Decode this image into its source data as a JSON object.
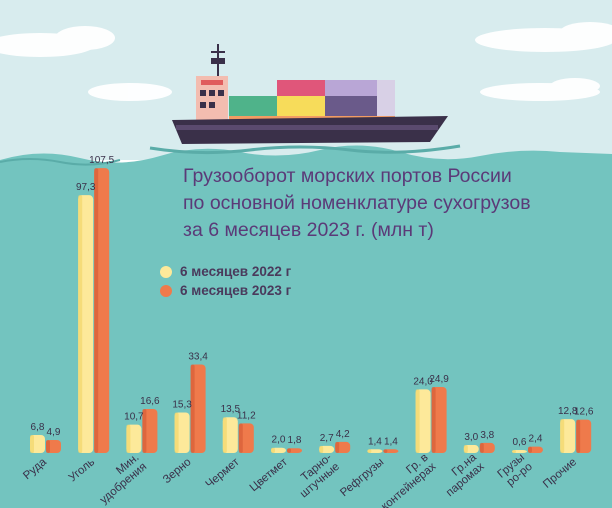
{
  "chart_data": {
    "type": "bar",
    "title": "Грузооборот морских портов России по основной номенклатуре сухогрузов за 6 месяцев 2023 г. (млн т)",
    "title_lines": [
      "Грузооборот морских портов России",
      "по основной номенклатуре сухогрузов",
      "за 6 месяцев 2023 г. (млн т)"
    ],
    "categories": [
      [
        "Руда"
      ],
      [
        "Уголь"
      ],
      [
        "Мин.",
        "удобрения"
      ],
      [
        "Зерно"
      ],
      [
        "Чермет"
      ],
      [
        "Цветмет"
      ],
      [
        "Тарно-",
        "штучные"
      ],
      [
        "Рефгрузы"
      ],
      [
        "Гр. в",
        "контейнерах"
      ],
      [
        "Гр.на",
        "паромах"
      ],
      [
        "Грузы",
        "ро-ро"
      ],
      [
        "Прочие"
      ]
    ],
    "series": [
      {
        "name": "6 месяцев 2022 г",
        "color": "#fde99a",
        "values": [
          6.8,
          97.3,
          10.7,
          15.3,
          13.5,
          2.0,
          2.7,
          1.4,
          24.0,
          3.0,
          0.6,
          12.8
        ],
        "labels": [
          "6,8",
          "97,3",
          "10,7",
          "15,3",
          "13,5",
          "2,0",
          "2,7",
          "1,4",
          "24,0",
          "3,0",
          "0,6",
          "12,8"
        ]
      },
      {
        "name": "6 месяцев 2023 г",
        "color": "#ef7a4b",
        "values": [
          4.9,
          107.5,
          16.6,
          33.4,
          11.2,
          1.8,
          4.2,
          1.4,
          24.9,
          3.8,
          2.4,
          12.6
        ],
        "labels": [
          "4,9",
          "107,5",
          "16,6",
          "33,4",
          "11,2",
          "1,8",
          "4,2",
          "1,4",
          "24,9",
          "3,8",
          "2,4",
          "12,6"
        ]
      }
    ],
    "colors": {
      "sky": "#d8ecee",
      "sea": "#73c4bf",
      "hull": "#3a3049",
      "title": "#5b3a78"
    }
  }
}
